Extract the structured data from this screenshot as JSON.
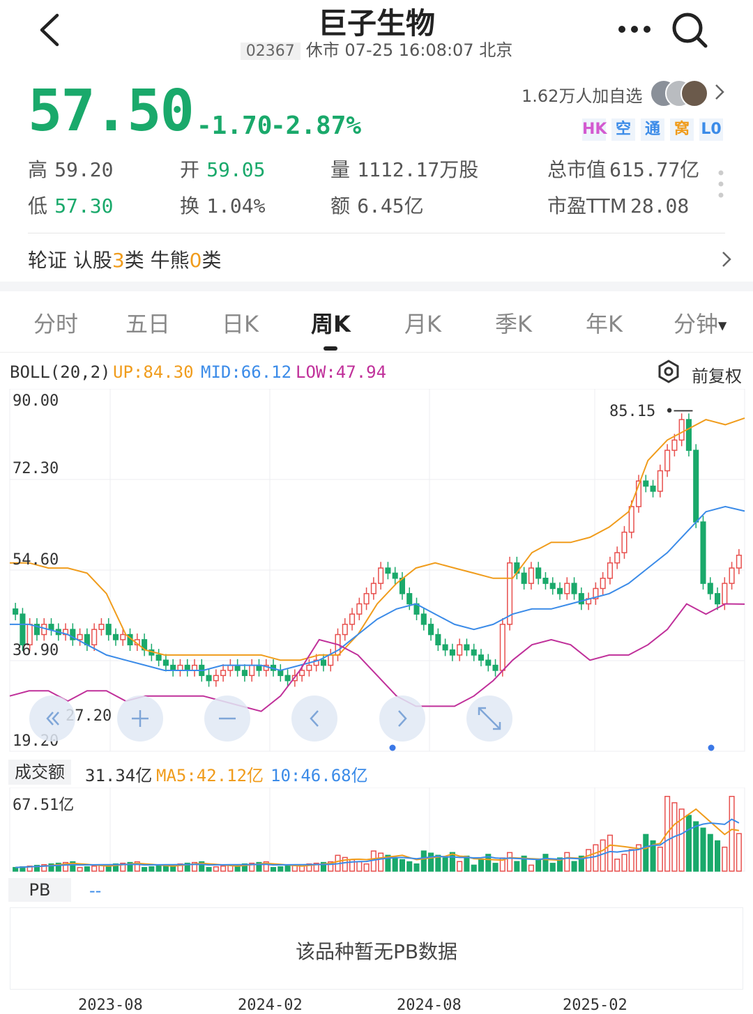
{
  "header": {
    "title": "巨子生物",
    "code": "02367",
    "status": "休市 07-25 16:08:07 北京",
    "followers": "1.62万人加自选"
  },
  "quote": {
    "price": "57.50",
    "change": "-1.70",
    "change_pct": "-2.87%",
    "tags": [
      {
        "label": "HK",
        "color": "#d35ad0"
      },
      {
        "label": "空",
        "color": "#3b8be8"
      },
      {
        "label": "通",
        "color": "#3b8be8"
      },
      {
        "label": "窝",
        "color": "#f09c1c"
      },
      {
        "label": "L0",
        "color": "#3b8be8"
      }
    ],
    "stats": [
      {
        "label": "高",
        "value": "59.20"
      },
      {
        "label": "开",
        "value": "59.05"
      },
      {
        "label": "量",
        "value": "1112.17万股"
      },
      {
        "label": "总市值",
        "value": "615.77亿"
      },
      {
        "label": "低",
        "value": "57.30"
      },
      {
        "label": "换",
        "value": "1.04%"
      },
      {
        "label": "额",
        "value": "6.45亿"
      },
      {
        "label": "市盈TTM",
        "value": "28.08"
      }
    ]
  },
  "warrants": {
    "prefix": "轮证 认股",
    "call_count": "3",
    "mid": "类 牛熊",
    "bull_count": "0",
    "suffix": "类"
  },
  "tabs": [
    "分时",
    "五日",
    "日K",
    "周K",
    "月K",
    "季K",
    "年K",
    "分钟"
  ],
  "active_tab": "周K",
  "indicator": {
    "name": "BOLL(20,2)",
    "up": "UP:84.30",
    "mid": "MID:66.12",
    "low": "LOW:47.94",
    "adjust": "前复权"
  },
  "price_axis": [
    "90.00",
    "72.30",
    "54.60",
    "36.90",
    "19.20"
  ],
  "max_label": "85.15",
  "min_label": "27.20",
  "volume": {
    "name": "成交额",
    "value": "31.34亿",
    "ma5": "MA5:42.12亿",
    "ma10": "10:46.68亿",
    "max": "67.51亿"
  },
  "pb": {
    "label": "PB",
    "value": "--",
    "empty_msg": "该品种暂无PB数据"
  },
  "dates": [
    "2023-08",
    "2024-02",
    "2024-08",
    "2025-02"
  ],
  "chart_data": {
    "type": "candlestick",
    "period": "weekly",
    "indicator": "BOLL(20,2)",
    "ylim": [
      19.2,
      90.0
    ],
    "y_ticks": [
      90.0,
      72.3,
      54.6,
      36.9,
      19.2
    ],
    "x_ticks": [
      "2023-08",
      "2024-02",
      "2024-08",
      "2025-02"
    ],
    "close_series": [
      46,
      40,
      44,
      42,
      44,
      43,
      42,
      43,
      41,
      42,
      40,
      43,
      44,
      42,
      41,
      42,
      40,
      41,
      39,
      38,
      37,
      36,
      35,
      36,
      35,
      36,
      34,
      33,
      34,
      35,
      36,
      35,
      34,
      36,
      35,
      36,
      35,
      34,
      33,
      34,
      35,
      36,
      37,
      36,
      38,
      42,
      44,
      46,
      48,
      50,
      52,
      55,
      54,
      53,
      50,
      48,
      46,
      44,
      42,
      40,
      39,
      38,
      40,
      39,
      38,
      37,
      36,
      35,
      44,
      56,
      54,
      52,
      55,
      53,
      52,
      51,
      50,
      52,
      50,
      48,
      49,
      51,
      53,
      56,
      58,
      62,
      67,
      72,
      71,
      70,
      74,
      78,
      80,
      84,
      78,
      64,
      52,
      50,
      48,
      52,
      55,
      57.5
    ],
    "boll_up": [
      56,
      56,
      55,
      55,
      54,
      50,
      42,
      39,
      38,
      38,
      38,
      38,
      38,
      38,
      37,
      37,
      38,
      38,
      42,
      48,
      52,
      55,
      56,
      55,
      54,
      53,
      53,
      58,
      60,
      60,
      61,
      63,
      66,
      76,
      80,
      82,
      84,
      83,
      84.3
    ],
    "boll_mid": [
      44,
      44,
      43,
      42,
      40,
      38,
      37,
      36,
      35,
      35,
      35,
      36,
      36,
      36,
      35,
      36,
      37,
      39,
      42,
      45,
      47,
      48,
      46,
      44,
      43,
      44,
      46,
      47,
      47,
      48,
      49,
      50,
      52,
      55,
      58,
      62,
      66,
      67,
      66.12
    ],
    "boll_low": [
      30,
      31,
      31,
      29,
      31,
      31,
      29,
      30,
      30,
      30,
      30,
      29,
      28,
      27,
      30,
      35,
      41,
      40,
      38,
      34,
      30,
      28,
      28,
      28,
      30,
      33,
      37,
      40,
      41,
      40,
      37,
      38,
      38,
      40,
      43,
      48,
      46,
      48,
      47.94
    ],
    "volume_unit": "亿",
    "volume_max": 67.51,
    "volume_last": 31.34,
    "volume_ma5": 42.12,
    "volume_ma10": 46.68
  }
}
